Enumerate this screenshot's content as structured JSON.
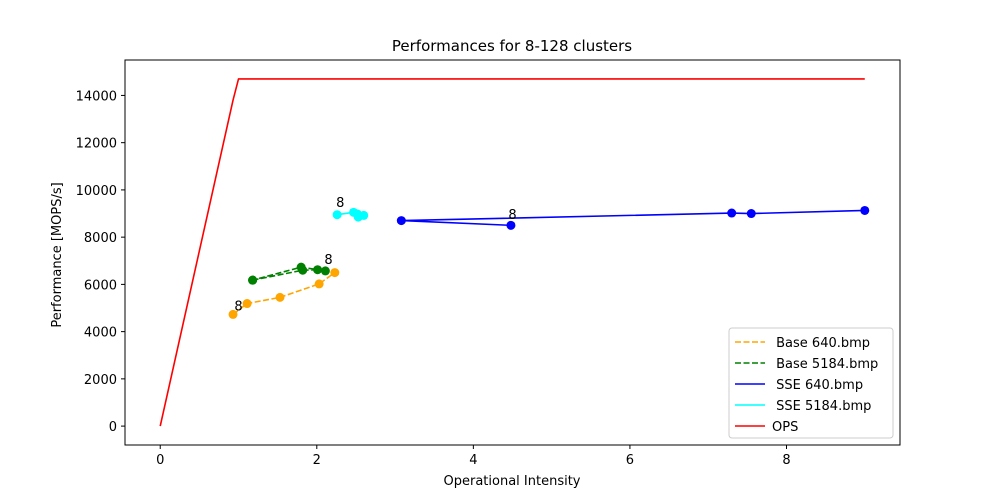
{
  "chart_data": {
    "type": "line",
    "title": "Performances for 8-128 clusters",
    "xlabel": "Operational Intensity",
    "ylabel": "Performance [MOPS/s]",
    "xlim": [
      -0.45,
      9.45
    ],
    "ylim": [
      -800,
      15500
    ],
    "xticks": [
      0,
      2,
      4,
      6,
      8
    ],
    "yticks": [
      0,
      2000,
      4000,
      6000,
      8000,
      10000,
      12000,
      14000
    ],
    "grid": false,
    "legend_position": "lower-right",
    "series": [
      {
        "name": " Base 640.bmp",
        "color": "#ffa500",
        "linestyle": "dashed",
        "marker": true,
        "x": [
          0.93,
          1.11,
          1.53,
          2.03,
          2.23
        ],
        "y": [
          4730,
          5190,
          5450,
          6020,
          6500
        ]
      },
      {
        "name": " Base 5184.bmp",
        "color": "#008000",
        "linestyle": "dashed",
        "marker": true,
        "x": [
          1.18,
          1.82,
          2.01,
          2.11,
          1.8,
          1.18
        ],
        "y": [
          6180,
          6600,
          6620,
          6570,
          6730,
          6180
        ]
      },
      {
        "name": " SSE 640.bmp",
        "color": "#0000ff",
        "linestyle": "solid",
        "marker": true,
        "x": [
          4.48,
          3.08,
          7.3,
          7.55,
          9.0
        ],
        "y": [
          8500,
          8700,
          9020,
          9000,
          9130
        ]
      },
      {
        "name": " SSE 5184.bmp",
        "color": "#00ffff",
        "linestyle": "solid",
        "marker": true,
        "x": [
          2.26,
          2.47,
          2.53,
          2.6,
          2.52
        ],
        "y": [
          8950,
          9050,
          8850,
          8920,
          8980
        ]
      },
      {
        "name": "OPS",
        "color": "#ff0000",
        "linestyle": "solid",
        "marker": false,
        "x": [
          0,
          0.93,
          1.0,
          9.0
        ],
        "y": [
          0,
          13800,
          14700,
          14700
        ]
      }
    ],
    "annotations": [
      {
        "text": "8",
        "x": 1.0,
        "y": 4730
      },
      {
        "text": "8",
        "x": 2.15,
        "y": 6700
      },
      {
        "text": "8",
        "x": 2.3,
        "y": 9100
      },
      {
        "text": "8",
        "x": 4.5,
        "y": 8600
      }
    ]
  }
}
